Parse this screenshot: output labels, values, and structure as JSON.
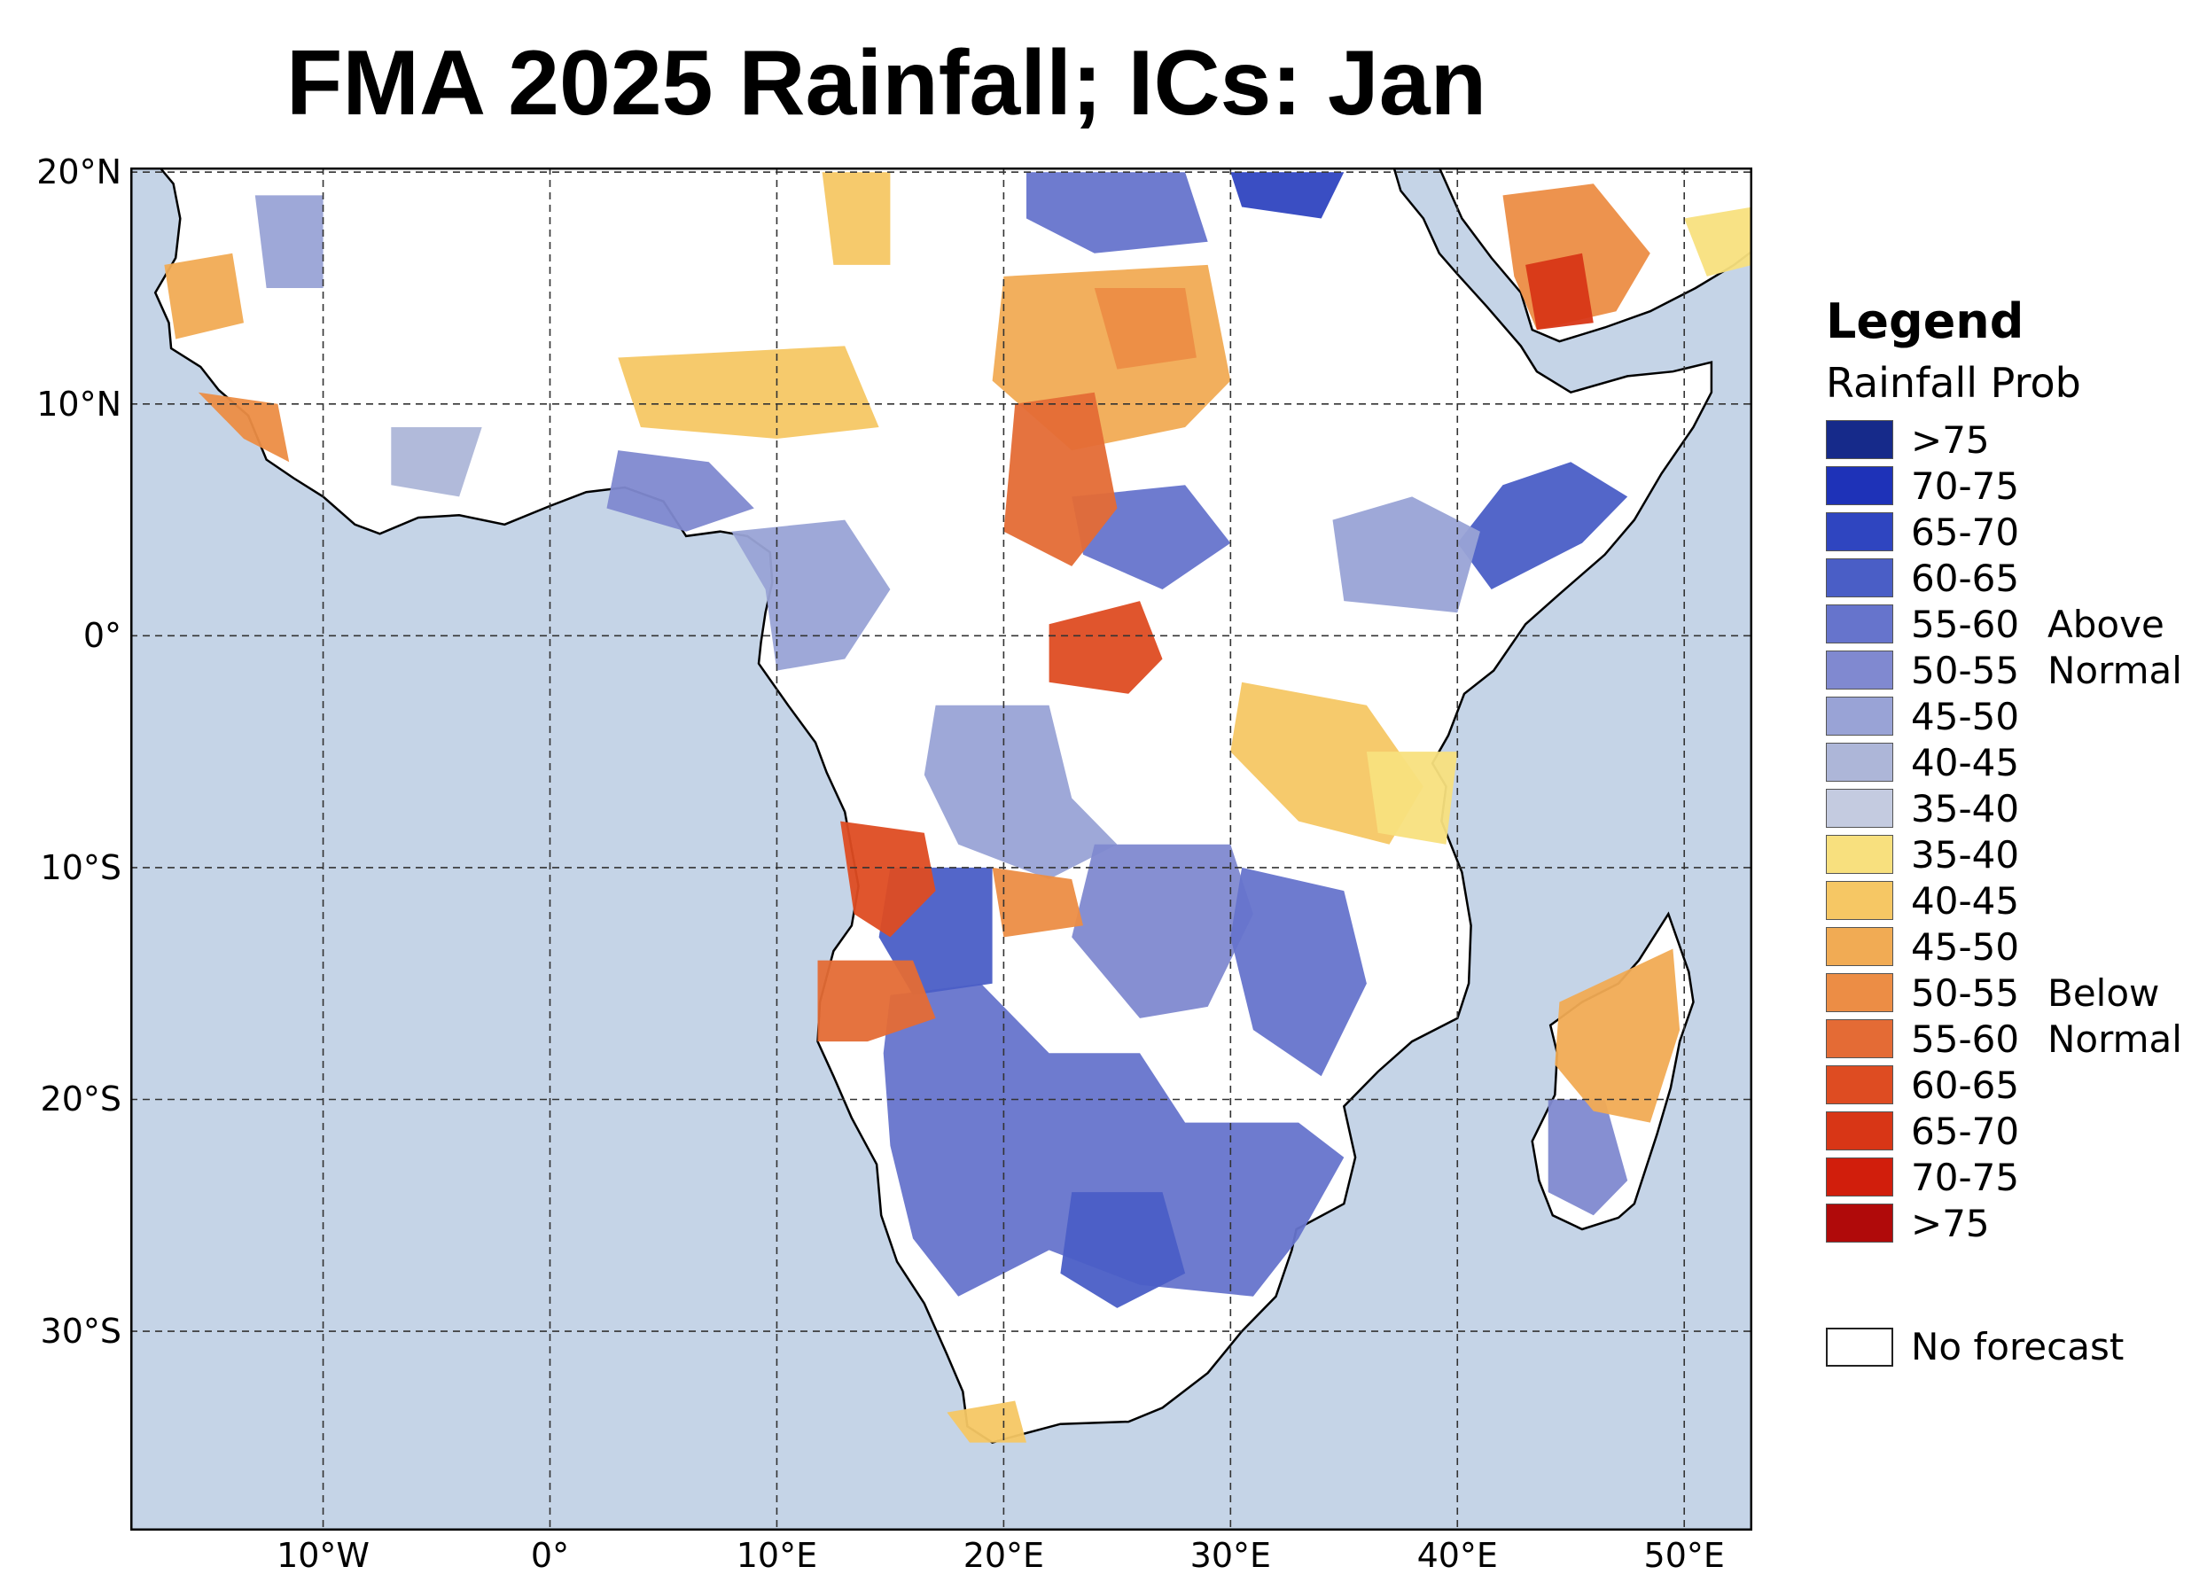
{
  "title": "FMA 2025 Rainfall; ICs: Jan",
  "map": {
    "lon_range": [
      -18.5,
      53
    ],
    "lat_range": [
      -38.6,
      20.2
    ],
    "ocean_color": "#c5d4e7",
    "land_color": "#ffffff",
    "gridlines": "dashed",
    "lat_ticks": [
      {
        "value": 20,
        "label": "20°N"
      },
      {
        "value": 10,
        "label": "10°N"
      },
      {
        "value": 0,
        "label": "0°"
      },
      {
        "value": -10,
        "label": "10°S"
      },
      {
        "value": -20,
        "label": "20°S"
      },
      {
        "value": -30,
        "label": "30°S"
      }
    ],
    "lon_ticks": [
      {
        "value": -10,
        "label": "10°W"
      },
      {
        "value": 0,
        "label": "0°"
      },
      {
        "value": 10,
        "label": "10°E"
      },
      {
        "value": 20,
        "label": "20°E"
      },
      {
        "value": 30,
        "label": "30°E"
      },
      {
        "value": 40,
        "label": "40°E"
      },
      {
        "value": 50,
        "label": "50°E"
      }
    ]
  },
  "legend": {
    "title": "Legend",
    "subtitle": "Rainfall Prob",
    "above_label_1": "Above",
    "above_label_2": "Normal",
    "below_label_1": "Below",
    "below_label_2": "Normal",
    "above": [
      {
        "label": ">75",
        "color": "#162a8a"
      },
      {
        "label": "70-75",
        "color": "#1e32b8"
      },
      {
        "label": "65-70",
        "color": "#2f45c0"
      },
      {
        "label": "60-65",
        "color": "#4a5ec6"
      },
      {
        "label": "55-60",
        "color": "#6674cc"
      },
      {
        "label": "50-55",
        "color": "#8089d0"
      },
      {
        "label": "45-50",
        "color": "#99a3d6"
      },
      {
        "label": "40-45",
        "color": "#adb6d8"
      },
      {
        "label": "35-40",
        "color": "#c4cbe0"
      }
    ],
    "below": [
      {
        "label": "35-40",
        "color": "#f8e07e"
      },
      {
        "label": "40-45",
        "color": "#f6c764"
      },
      {
        "label": "45-50",
        "color": "#f1ab54"
      },
      {
        "label": "50-55",
        "color": "#ec8d45"
      },
      {
        "label": "55-60",
        "color": "#e46b35"
      },
      {
        "label": "60-65",
        "color": "#de4c22"
      },
      {
        "label": "65-70",
        "color": "#d83616"
      },
      {
        "label": "70-75",
        "color": "#d11e0c"
      },
      {
        "label": ">75",
        "color": "#b00a0a"
      }
    ],
    "no_forecast": {
      "label": "No forecast",
      "color": "#ffffff"
    }
  }
}
